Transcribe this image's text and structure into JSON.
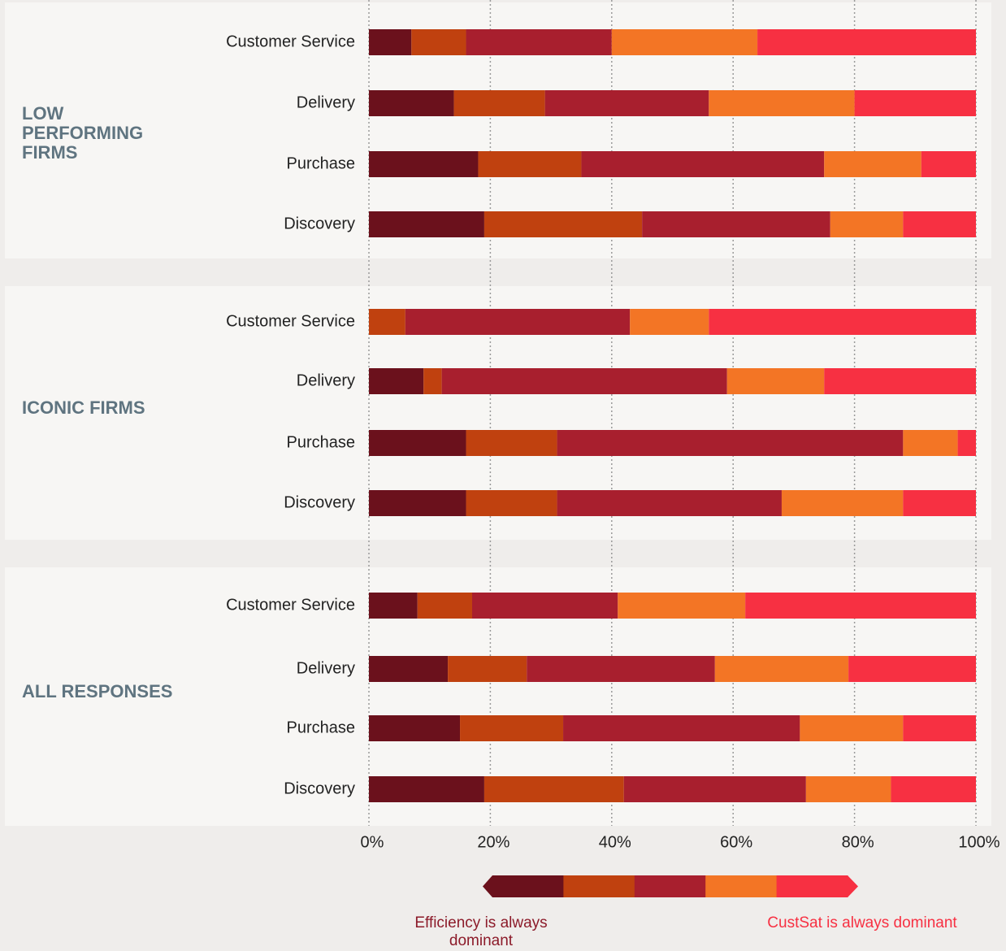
{
  "chart_data": {
    "type": "stacked-bar-horizontal",
    "xlim": [
      0,
      100
    ],
    "xticks": [
      {
        "value": 0,
        "label": "0%"
      },
      {
        "value": 20,
        "label": "20%"
      },
      {
        "value": 40,
        "label": "40%"
      },
      {
        "value": 60,
        "label": "60%"
      },
      {
        "value": 80,
        "label": "80%"
      },
      {
        "value": 100,
        "label": "100%"
      }
    ],
    "grid": true,
    "groups": [
      {
        "title": "LOW PERFORMING FIRMS",
        "categories": [
          "Customer Service",
          "Delivery",
          "Purchase",
          "Discovery"
        ],
        "series": [
          {
            "color": "#6b111c",
            "values": [
              7,
              14,
              18,
              19
            ]
          },
          {
            "color": "#c0410f",
            "values": [
              9,
              15,
              17,
              26
            ]
          },
          {
            "color": "#a81f2e",
            "values": [
              24,
              27,
              40,
              31
            ]
          },
          {
            "color": "#f37525",
            "values": [
              24,
              24,
              16,
              12
            ]
          },
          {
            "color": "#f73042",
            "values": [
              36,
              20,
              9,
              12
            ]
          }
        ]
      },
      {
        "title": "ICONIC FIRMS",
        "categories": [
          "Customer Service",
          "Delivery",
          "Purchase",
          "Discovery"
        ],
        "series": [
          {
            "color": "#6b111c",
            "values": [
              0,
              9,
              16,
              16
            ]
          },
          {
            "color": "#c0410f",
            "values": [
              6,
              3,
              15,
              15
            ]
          },
          {
            "color": "#a81f2e",
            "values": [
              37,
              47,
              57,
              37
            ]
          },
          {
            "color": "#f37525",
            "values": [
              13,
              16,
              9,
              20
            ]
          },
          {
            "color": "#f73042",
            "values": [
              44,
              25,
              3,
              12
            ]
          }
        ]
      },
      {
        "title": "ALL RESPONSES",
        "categories": [
          "Customer Service",
          "Delivery",
          "Purchase",
          "Discovery"
        ],
        "series": [
          {
            "color": "#6b111c",
            "values": [
              8,
              13,
              15,
              19
            ]
          },
          {
            "color": "#c0410f",
            "values": [
              9,
              13,
              17,
              23
            ]
          },
          {
            "color": "#a81f2e",
            "values": [
              24,
              31,
              39,
              30
            ]
          },
          {
            "color": "#f37525",
            "values": [
              21,
              22,
              17,
              14
            ]
          },
          {
            "color": "#f73042",
            "values": [
              38,
              21,
              12,
              14
            ]
          }
        ]
      }
    ],
    "legend": {
      "left": "Efficiency is always dominant",
      "right": "CustSat is always dominant"
    }
  }
}
